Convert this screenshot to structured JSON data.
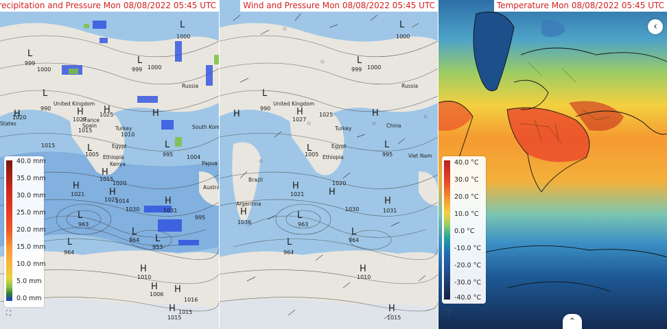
{
  "panels": {
    "precip": {
      "title": "Precipitation and Pressure Mon 08/08/2022 05:45 UTC",
      "legend": {
        "labels": [
          "40.0 mm",
          "35.0 mm",
          "30.0 mm",
          "25.0 mm",
          "20.0 mm",
          "15.0 mm",
          "10.0 mm",
          "5.0 mm",
          "0.0 mm"
        ],
        "colors": [
          "#7a1710",
          "#a51f16",
          "#cf2a1c",
          "#e83a22",
          "#ef5a25",
          "#f59a38",
          "#f7b83a",
          "#e8d23a",
          "#8bc34a",
          "#2e7d32",
          "#1a3ad8"
        ]
      }
    },
    "wind": {
      "title": "Wind and Pressure Mon 08/08/2022 05:45 UTC"
    },
    "temp": {
      "title": "Temperature Mon 08/08/2022 05:45 UTC",
      "legend": {
        "labels": [
          "40.0 °C",
          "30.0 °C",
          "20.0 °C",
          "10.0 °C",
          "0.0 °C",
          "-10.0 °C",
          "-20.0 °C",
          "-30.0 °C",
          "-40.0 °C"
        ],
        "colors": [
          "#b81e1e",
          "#e8412a",
          "#f59a31",
          "#f4d03f",
          "#9ccc65",
          "#26a69a",
          "#1e6fb3",
          "#254f96",
          "#1d3566",
          "#151f45"
        ]
      }
    }
  },
  "pressure_labels": {
    "highs": [
      "H",
      "H",
      "H",
      "H",
      "H",
      "H",
      "H",
      "H",
      "H",
      "H",
      "H",
      "H",
      "H",
      "H"
    ],
    "lows": [
      "L",
      "L",
      "L",
      "L",
      "L",
      "L",
      "L",
      "L",
      "L",
      "L",
      "L",
      "L",
      "L",
      "L"
    ],
    "values": [
      "1000",
      "999",
      "1000",
      "999",
      "1000",
      "999",
      "990",
      "990",
      "1020",
      "1027",
      "1025",
      "1015",
      "1010",
      "1010",
      "1005",
      "995",
      "1004",
      "1015",
      "1020",
      "1021",
      "1025",
      "1014",
      "1030",
      "1031",
      "963",
      "964",
      "953",
      "995",
      "1010",
      "1006",
      "1016",
      "1015",
      "1015",
      "1036"
    ]
  },
  "place_names": [
    "Russia",
    "United Kingdom",
    "France",
    "Spain",
    "Turkey",
    "Egypt",
    "Ethiopia",
    "Kenya",
    "Papua N",
    "Austral",
    "Argentina",
    "Brazil",
    "China",
    "Viet Nam",
    "South Kore",
    "States"
  ],
  "controls": {
    "collapse_icon": "chevron-left-icon",
    "collapse_label": "‹",
    "expand_icon": "chevron-up-icon",
    "expand_label": "⌃",
    "fullscreen_icon": "fullscreen-icon",
    "fullscreen_label": "⛶"
  },
  "colors": {
    "ocean": "#9fc6e6",
    "land": "#e9e6df",
    "ice": "#dfe4ea",
    "rain": "#4a8ad8",
    "title_red": "#d32020"
  }
}
